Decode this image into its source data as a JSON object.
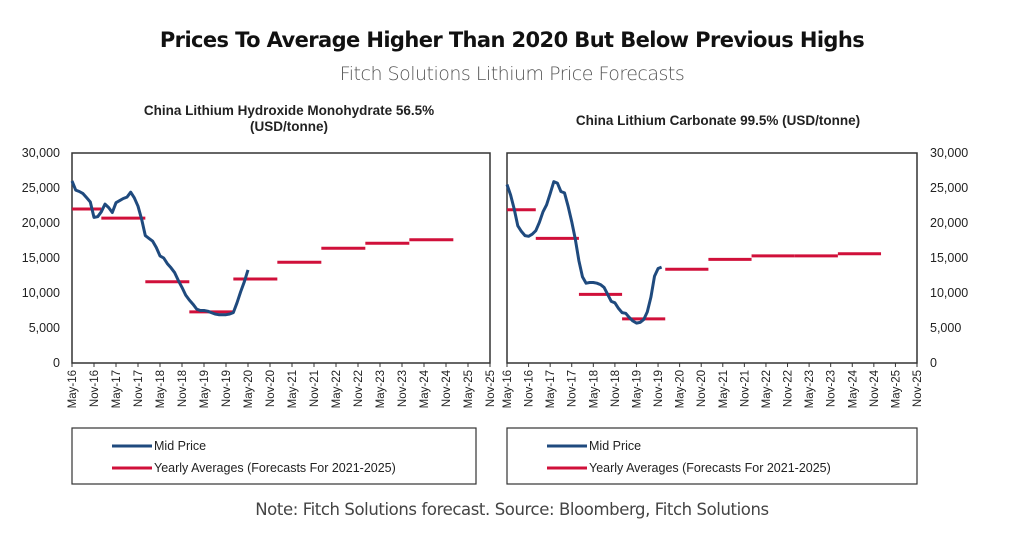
{
  "header": {
    "title": "Prices To Average Higher Than 2020 But Below Previous Highs",
    "subtitle": "Fitch Solutions Lithium Price Forecasts"
  },
  "footer": {
    "note": "Note: Fitch Solutions forecast. Source: Bloomberg, Fitch Solutions"
  },
  "colors": {
    "mid_price": "#1f4a7e",
    "yearly_avg": "#d0103a"
  },
  "chart_data": [
    {
      "type": "line",
      "title_lines": [
        "China Lithium Hydroxide Monohydrate 56.5%",
        "(USD/tonne)"
      ],
      "xlabel": "",
      "ylabel": "",
      "y_axis_side": "left",
      "ylim": [
        0,
        30000
      ],
      "yticks": [
        0,
        5000,
        10000,
        15000,
        20000,
        25000,
        30000
      ],
      "ytick_labels": [
        "0",
        "5,000",
        "10,000",
        "15,000",
        "20,000",
        "25,000",
        "30,000"
      ],
      "x_range": [
        "2016-05",
        "2025-11"
      ],
      "x_tick_labels": [
        "May-16",
        "Nov-16",
        "May-17",
        "Nov-17",
        "May-18",
        "Nov-18",
        "May-19",
        "Nov-19",
        "May-20",
        "Nov-20",
        "May-21",
        "Nov-21",
        "May-22",
        "Nov-22",
        "May-23",
        "Nov-23",
        "May-24",
        "Nov-24",
        "May-25",
        "Nov-25"
      ],
      "grid": false,
      "legend": {
        "placement": "bottom",
        "entries": [
          "Mid Price",
          "Yearly Averages (Forecasts For 2021-2025)"
        ]
      },
      "series": [
        {
          "name": "Mid Price",
          "points": [
            [
              "2016-05",
              26000
            ],
            [
              "2016-06",
              24700
            ],
            [
              "2016-07",
              24500
            ],
            [
              "2016-08",
              24200
            ],
            [
              "2016-09",
              23600
            ],
            [
              "2016-10",
              23000
            ],
            [
              "2016-11",
              20800
            ],
            [
              "2016-12",
              20900
            ],
            [
              "2017-01",
              21600
            ],
            [
              "2017-02",
              22700
            ],
            [
              "2017-03",
              22200
            ],
            [
              "2017-04",
              21500
            ],
            [
              "2017-05",
              22900
            ],
            [
              "2017-06",
              23200
            ],
            [
              "2017-07",
              23500
            ],
            [
              "2017-08",
              23700
            ],
            [
              "2017-09",
              24400
            ],
            [
              "2017-10",
              23600
            ],
            [
              "2017-11",
              22400
            ],
            [
              "2017-12",
              20500
            ],
            [
              "2018-01",
              18200
            ],
            [
              "2018-02",
              17800
            ],
            [
              "2018-03",
              17400
            ],
            [
              "2018-04",
              16500
            ],
            [
              "2018-05",
              15300
            ],
            [
              "2018-06",
              15000
            ],
            [
              "2018-07",
              14200
            ],
            [
              "2018-08",
              13600
            ],
            [
              "2018-09",
              12900
            ],
            [
              "2018-10",
              11800
            ],
            [
              "2018-11",
              10800
            ],
            [
              "2018-12",
              9700
            ],
            [
              "2019-01",
              9000
            ],
            [
              "2019-02",
              8400
            ],
            [
              "2019-03",
              7700
            ],
            [
              "2019-04",
              7500
            ],
            [
              "2019-05",
              7500
            ],
            [
              "2019-06",
              7400
            ],
            [
              "2019-07",
              7200
            ],
            [
              "2019-08",
              7000
            ],
            [
              "2019-09",
              6900
            ],
            [
              "2019-10",
              6900
            ],
            [
              "2019-11",
              6900
            ],
            [
              "2019-12",
              7000
            ],
            [
              "2020-01",
              7200
            ],
            [
              "2020-02",
              8600
            ],
            [
              "2020-03",
              10200
            ],
            [
              "2020-04",
              11600
            ],
            [
              "2020-05",
              13300
            ]
          ]
        },
        {
          "name": "Yearly Averages (Forecasts For 2021-2025)",
          "segments": [
            {
              "year": 2016,
              "value": 22000
            },
            {
              "year": 2017,
              "value": 20700
            },
            {
              "year": 2018,
              "value": 11600
            },
            {
              "year": 2019,
              "value": 7300
            },
            {
              "year": 2020,
              "value": 12000
            },
            {
              "year": 2021,
              "value": 14400
            },
            {
              "year": 2022,
              "value": 16400
            },
            {
              "year": 2023,
              "value": 17100
            },
            {
              "year": 2024,
              "value": 17600
            }
          ]
        }
      ]
    },
    {
      "type": "line",
      "title_lines": [
        "China Lithium Carbonate 99.5% (USD/tonne)"
      ],
      "xlabel": "",
      "ylabel": "",
      "y_axis_side": "right",
      "ylim": [
        0,
        30000
      ],
      "yticks": [
        0,
        5000,
        10000,
        15000,
        20000,
        25000,
        30000
      ],
      "ytick_labels": [
        "0",
        "5,000",
        "10,000",
        "15,000",
        "20,000",
        "25,000",
        "30,000"
      ],
      "x_range": [
        "2016-05",
        "2025-11"
      ],
      "x_tick_labels": [
        "May-16",
        "Nov-16",
        "May-17",
        "Nov-17",
        "May-18",
        "Nov-18",
        "May-19",
        "Nov-19",
        "May-20",
        "Nov-20",
        "May-21",
        "Nov-21",
        "May-22",
        "Nov-22",
        "May-23",
        "Nov-23",
        "May-24",
        "Nov-24",
        "May-25",
        "Nov-25"
      ],
      "grid": false,
      "legend": {
        "placement": "bottom",
        "entries": [
          "Mid Price",
          "Yearly Averages (Forecasts For 2021-2025)"
        ]
      },
      "series": [
        {
          "name": "Mid Price",
          "points": [
            [
              "2016-05",
              25500
            ],
            [
              "2016-06",
              24000
            ],
            [
              "2016-07",
              22000
            ],
            [
              "2016-08",
              19600
            ],
            [
              "2016-09",
              18800
            ],
            [
              "2016-10",
              18200
            ],
            [
              "2016-11",
              18100
            ],
            [
              "2016-12",
              18400
            ],
            [
              "2017-01",
              18900
            ],
            [
              "2017-02",
              20100
            ],
            [
              "2017-03",
              21600
            ],
            [
              "2017-04",
              22600
            ],
            [
              "2017-05",
              24200
            ],
            [
              "2017-06",
              25900
            ],
            [
              "2017-07",
              25700
            ],
            [
              "2017-08",
              24500
            ],
            [
              "2017-09",
              24300
            ],
            [
              "2017-10",
              22400
            ],
            [
              "2017-11",
              20200
            ],
            [
              "2017-12",
              17700
            ],
            [
              "2018-01",
              14600
            ],
            [
              "2018-02",
              12300
            ],
            [
              "2018-03",
              11400
            ],
            [
              "2018-04",
              11500
            ],
            [
              "2018-05",
              11500
            ],
            [
              "2018-06",
              11400
            ],
            [
              "2018-07",
              11200
            ],
            [
              "2018-08",
              10800
            ],
            [
              "2018-09",
              9800
            ],
            [
              "2018-10",
              8800
            ],
            [
              "2018-11",
              8600
            ],
            [
              "2018-12",
              7800
            ],
            [
              "2019-01",
              7200
            ],
            [
              "2019-02",
              7100
            ],
            [
              "2019-03",
              6500
            ],
            [
              "2019-04",
              6000
            ],
            [
              "2019-05",
              5700
            ],
            [
              "2019-06",
              5800
            ],
            [
              "2019-07",
              6200
            ],
            [
              "2019-08",
              7300
            ],
            [
              "2019-09",
              9400
            ],
            [
              "2019-10",
              12400
            ],
            [
              "2019-11",
              13500
            ],
            [
              "2019-12",
              13700
            ]
          ]
        },
        {
          "name": "Yearly Averages (Forecasts For 2021-2025)",
          "segments": [
            {
              "year": 2016,
              "value": 21900
            },
            {
              "year": 2017,
              "value": 17800
            },
            {
              "year": 2018,
              "value": 9800
            },
            {
              "year": 2019,
              "value": 6300
            },
            {
              "year": 2020,
              "value": 13400
            },
            {
              "year": 2021,
              "value": 14800
            },
            {
              "year": 2022,
              "value": 15300
            },
            {
              "year": 2023,
              "value": 15300
            },
            {
              "year": 2024,
              "value": 15600
            }
          ]
        }
      ]
    }
  ]
}
